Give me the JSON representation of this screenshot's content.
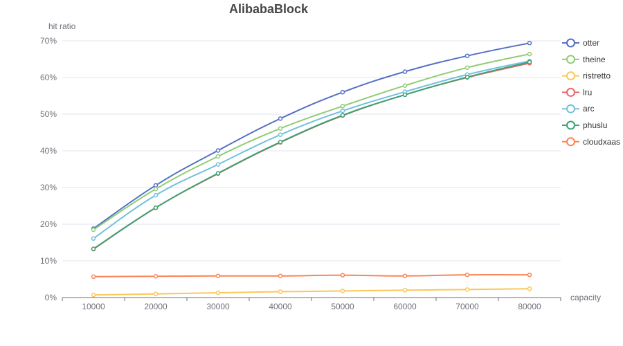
{
  "chart_data": {
    "type": "line",
    "title": "AlibabaBlock",
    "xlabel": "capacity",
    "ylabel": "hit ratio",
    "categories": [
      "10000",
      "20000",
      "30000",
      "40000",
      "50000",
      "60000",
      "70000",
      "80000"
    ],
    "ylim": [
      0,
      70
    ],
    "yticks": [
      "0%",
      "10%",
      "20%",
      "30%",
      "40%",
      "50%",
      "60%",
      "70%"
    ],
    "grid": true,
    "legend_position": "right",
    "series": [
      {
        "name": "otter",
        "color": "#5470c6",
        "values": [
          18.8,
          30.6,
          40.1,
          48.8,
          56.0,
          61.6,
          65.9,
          69.4
        ]
      },
      {
        "name": "theine",
        "color": "#91cc75",
        "values": [
          18.5,
          29.6,
          38.5,
          46.1,
          52.2,
          57.8,
          62.7,
          66.4
        ]
      },
      {
        "name": "ristretto",
        "color": "#fac858",
        "values": [
          0.7,
          1.0,
          1.3,
          1.6,
          1.8,
          2.0,
          2.2,
          2.4
        ]
      },
      {
        "name": "lru",
        "color": "#ee6666",
        "values": [
          13.2,
          24.5,
          33.8,
          42.3,
          49.6,
          55.3,
          60.0,
          63.9
        ]
      },
      {
        "name": "arc",
        "color": "#73c0de",
        "values": [
          16.1,
          27.9,
          36.3,
          44.4,
          50.9,
          56.1,
          60.8,
          64.5
        ]
      },
      {
        "name": "phuslu",
        "color": "#3ba272",
        "values": [
          13.3,
          24.5,
          33.9,
          42.4,
          49.7,
          55.3,
          60.1,
          64.2
        ]
      },
      {
        "name": "cloudxaas",
        "color": "#fc8452",
        "values": [
          5.7,
          5.8,
          5.9,
          5.9,
          6.1,
          5.9,
          6.2,
          6.2
        ]
      }
    ]
  }
}
